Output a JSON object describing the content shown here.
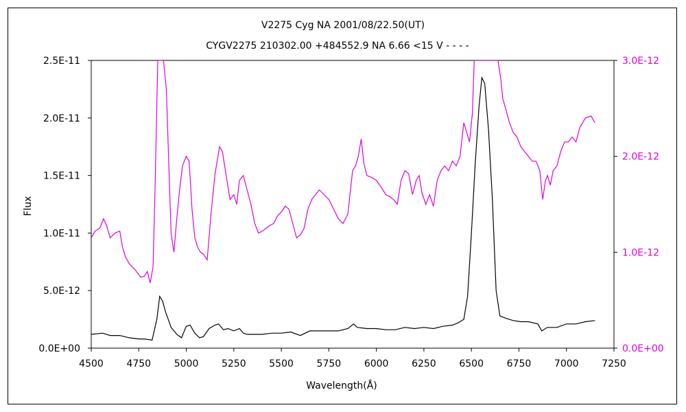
{
  "chart_data": {
    "type": "line",
    "title": "V2275 Cyg NA 2001/08/22.50(UT)",
    "subtitle": "CYGV2275 210302.00 +484552.9 NA 6.66 <15 V - - - -",
    "xlabel": "Wavelength(Å)",
    "ylabel": "Flux",
    "xlim": [
      4500,
      7250
    ],
    "ylim": [
      0,
      2.5e-11
    ],
    "y2lim": [
      0,
      3e-12
    ],
    "x_ticks": [
      "4500",
      "4750",
      "5000",
      "5250",
      "5500",
      "5750",
      "6000",
      "6250",
      "6500",
      "6750",
      "7000",
      "7250"
    ],
    "y_ticks": [
      "0.0E+00",
      "5.0E-12",
      "1.0E-11",
      "1.5E-11",
      "2.0E-11",
      "2.5E-11"
    ],
    "y2_ticks": [
      "0.0E+00",
      "1.0E-12",
      "2.0E-12",
      "3.0E-12"
    ],
    "colors": {
      "left_axis": "#000000",
      "right_axis": "#dd00dd"
    },
    "series": [
      {
        "axis": "left",
        "color": "#000000",
        "x": [
          4500,
          4560,
          4600,
          4650,
          4700,
          4750,
          4780,
          4820,
          4845,
          4860,
          4875,
          4890,
          4920,
          4950,
          4975,
          5000,
          5020,
          5045,
          5070,
          5090,
          5120,
          5150,
          5170,
          5195,
          5220,
          5250,
          5280,
          5300,
          5320,
          5350,
          5400,
          5450,
          5500,
          5550,
          5600,
          5650,
          5700,
          5750,
          5800,
          5850,
          5880,
          5900,
          5950,
          6000,
          6050,
          6100,
          6150,
          6200,
          6250,
          6300,
          6350,
          6400,
          6430,
          6460,
          6480,
          6500,
          6520,
          6540,
          6555,
          6570,
          6590,
          6610,
          6630,
          6650,
          6680,
          6720,
          6760,
          6800,
          6850,
          6870,
          6900,
          6950,
          7000,
          7050,
          7100,
          7150
        ],
        "y": [
          1.2e-12,
          1.3e-12,
          1.1e-12,
          1.1e-12,
          9e-13,
          8e-13,
          8e-13,
          7e-13,
          2.5e-12,
          4.5e-12,
          4.1e-12,
          3.2e-12,
          1.8e-12,
          1.2e-12,
          9e-13,
          1.9e-12,
          2e-12,
          1.3e-12,
          9e-13,
          1e-12,
          1.7e-12,
          2e-12,
          2.1e-12,
          1.6e-12,
          1.7e-12,
          1.5e-12,
          1.7e-12,
          1.3e-12,
          1.2e-12,
          1.2e-12,
          1.2e-12,
          1.3e-12,
          1.3e-12,
          1.4e-12,
          1.1e-12,
          1.5e-12,
          1.5e-12,
          1.5e-12,
          1.5e-12,
          1.7e-12,
          2.1e-12,
          1.8e-12,
          1.7e-12,
          1.7e-12,
          1.6e-12,
          1.6e-12,
          1.8e-12,
          1.7e-12,
          1.8e-12,
          1.7e-12,
          1.9e-12,
          2e-12,
          2.2e-12,
          2.5e-12,
          4.5e-12,
          1e-11,
          1.6e-11,
          2.1e-11,
          2.35e-11,
          2.3e-11,
          1.9e-11,
          1.3e-11,
          5e-12,
          2.8e-12,
          2.6e-12,
          2.4e-12,
          2.3e-12,
          2.3e-12,
          2.1e-12,
          1.5e-12,
          1.8e-12,
          1.8e-12,
          2.1e-12,
          2.1e-12,
          2.3e-12,
          2.4e-12
        ]
      },
      {
        "axis": "right",
        "color": "#dd00dd",
        "x": [
          4500,
          4520,
          4545,
          4565,
          4580,
          4600,
          4625,
          4650,
          4665,
          4680,
          4700,
          4730,
          4760,
          4780,
          4795,
          4810,
          4825,
          4835,
          4850,
          4865,
          4880,
          4895,
          4910,
          4920,
          4935,
          4950,
          4965,
          4980,
          5000,
          5015,
          5030,
          5045,
          5060,
          5075,
          5090,
          5110,
          5130,
          5150,
          5175,
          5190,
          5210,
          5230,
          5250,
          5265,
          5280,
          5300,
          5320,
          5340,
          5360,
          5380,
          5400,
          5420,
          5440,
          5460,
          5480,
          5500,
          5520,
          5540,
          5560,
          5580,
          5600,
          5620,
          5640,
          5660,
          5680,
          5700,
          5725,
          5750,
          5775,
          5800,
          5825,
          5850,
          5875,
          5890,
          5905,
          5920,
          5935,
          5950,
          5975,
          6000,
          6025,
          6050,
          6070,
          6090,
          6110,
          6130,
          6150,
          6170,
          6190,
          6210,
          6225,
          6240,
          6260,
          6280,
          6300,
          6320,
          6340,
          6360,
          6380,
          6400,
          6420,
          6440,
          6460,
          6475,
          6490,
          6505,
          6515,
          6525,
          6640,
          6655,
          6665,
          6680,
          6700,
          6720,
          6740,
          6760,
          6780,
          6800,
          6820,
          6840,
          6860,
          6875,
          6890,
          6900,
          6915,
          6930,
          6950,
          6970,
          6990,
          7010,
          7030,
          7050,
          7070,
          7100,
          7130,
          7150
        ],
        "y": [
          1.15e-12,
          1.22e-12,
          1.25e-12,
          1.35e-12,
          1.28e-12,
          1.15e-12,
          1.2e-12,
          1.22e-12,
          1.05e-12,
          9.5e-13,
          8.8e-13,
          8.2e-13,
          7.4e-13,
          7.5e-13,
          8e-13,
          6.8e-13,
          8.5e-13,
          1.6e-12,
          3e-12,
          3e-12,
          3e-12,
          2.7e-12,
          1.8e-12,
          1.2e-12,
          1e-12,
          1.35e-12,
          1.65e-12,
          1.9e-12,
          2e-12,
          1.95e-12,
          1.45e-12,
          1.15e-12,
          1.05e-12,
          1e-12,
          9.8e-13,
          9.2e-13,
          1.4e-12,
          1.8e-12,
          2.1e-12,
          2.05e-12,
          1.8e-12,
          1.55e-12,
          1.6e-12,
          1.5e-12,
          1.75e-12,
          1.8e-12,
          1.65e-12,
          1.5e-12,
          1.3e-12,
          1.2e-12,
          1.22e-12,
          1.25e-12,
          1.28e-12,
          1.3e-12,
          1.38e-12,
          1.42e-12,
          1.48e-12,
          1.45e-12,
          1.3e-12,
          1.15e-12,
          1.18e-12,
          1.25e-12,
          1.45e-12,
          1.55e-12,
          1.6e-12,
          1.65e-12,
          1.6e-12,
          1.55e-12,
          1.45e-12,
          1.35e-12,
          1.3e-12,
          1.4e-12,
          1.85e-12,
          1.9e-12,
          2e-12,
          2.18e-12,
          1.92e-12,
          1.8e-12,
          1.78e-12,
          1.75e-12,
          1.68e-12,
          1.6e-12,
          1.58e-12,
          1.55e-12,
          1.5e-12,
          1.75e-12,
          1.85e-12,
          1.82e-12,
          1.6e-12,
          1.75e-12,
          1.8e-12,
          1.62e-12,
          1.5e-12,
          1.6e-12,
          1.48e-12,
          1.75e-12,
          1.85e-12,
          1.9e-12,
          1.85e-12,
          1.95e-12,
          1.9e-12,
          2e-12,
          2.35e-12,
          2.25e-12,
          2.15e-12,
          2.45e-12,
          3e-12,
          3e-12,
          3e-12,
          2.8e-12,
          2.6e-12,
          2.5e-12,
          2.35e-12,
          2.25e-12,
          2.2e-12,
          2.1e-12,
          2.05e-12,
          2e-12,
          1.95e-12,
          1.95e-12,
          1.85e-12,
          1.55e-12,
          1.75e-12,
          1.8e-12,
          1.7e-12,
          1.85e-12,
          1.9e-12,
          2.05e-12,
          2.15e-12,
          2.15e-12,
          2.2e-12,
          2.15e-12,
          2.3e-12,
          2.4e-12,
          2.42e-12,
          2.35e-12
        ]
      }
    ],
    "grid": false
  }
}
